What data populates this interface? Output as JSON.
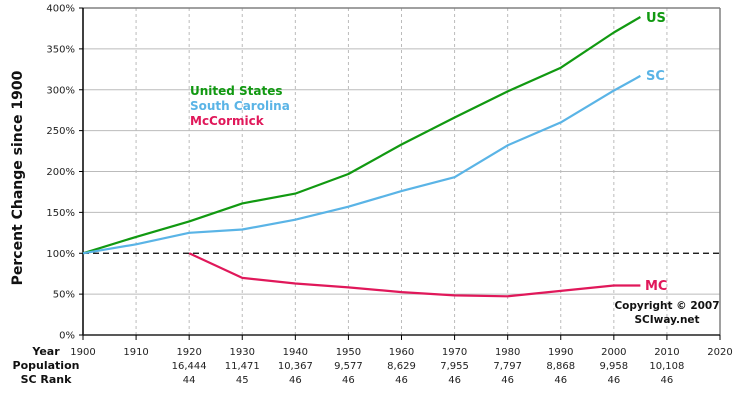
{
  "chart_data": {
    "type": "line",
    "title": "",
    "ylabel": "Percent Change since 1900",
    "xlabel": "Year",
    "ylim": [
      0,
      400
    ],
    "xlim": [
      1900,
      2020
    ],
    "yticks": [
      "0%",
      "50%",
      "100%",
      "150%",
      "200%",
      "250%",
      "300%",
      "350%",
      "400%"
    ],
    "ytick_values": [
      0,
      50,
      100,
      150,
      200,
      250,
      300,
      350,
      400
    ],
    "xticks": [
      1900,
      1910,
      1920,
      1930,
      1940,
      1950,
      1960,
      1970,
      1980,
      1990,
      2000,
      2010,
      2020
    ],
    "grid": true,
    "reference_line": {
      "y": 100,
      "style": "dashed"
    },
    "legend": {
      "position": "upper-left-inside",
      "entries": [
        {
          "label": "United States",
          "color": "#119911"
        },
        {
          "label": "South Carolina",
          "color": "#5ab4e6"
        },
        {
          "label": "McCormick",
          "color": "#e0185a"
        }
      ]
    },
    "series": [
      {
        "name": "United States",
        "end_label": "US",
        "color": "#119911",
        "x": [
          1900,
          1910,
          1920,
          1930,
          1940,
          1950,
          1960,
          1970,
          1980,
          1990,
          2000,
          2005
        ],
        "values": [
          100,
          120,
          139,
          161,
          173,
          197,
          233,
          266,
          298,
          327,
          370,
          389
        ]
      },
      {
        "name": "South Carolina",
        "end_label": "SC",
        "color": "#5ab4e6",
        "x": [
          1900,
          1910,
          1920,
          1930,
          1940,
          1950,
          1960,
          1970,
          1980,
          1990,
          2000,
          2005
        ],
        "values": [
          100,
          111,
          125,
          129,
          141,
          157,
          176,
          193,
          232,
          260,
          299,
          317
        ]
      },
      {
        "name": "McCormick",
        "end_label": "MC",
        "color": "#e0185a",
        "x": [
          1920,
          1930,
          1940,
          1950,
          1960,
          1970,
          1980,
          1990,
          2000,
          2005
        ],
        "values": [
          100,
          69.8,
          63.0,
          58.2,
          52.5,
          48.4,
          47.4,
          53.9,
          60.6,
          60.6
        ]
      }
    ],
    "table": {
      "row_labels": [
        "Year",
        "Population",
        "SC Rank"
      ],
      "columns": [
        {
          "year": "1900",
          "population": "",
          "rank": ""
        },
        {
          "year": "1910",
          "population": "",
          "rank": ""
        },
        {
          "year": "1920",
          "population": "16,444",
          "rank": "44"
        },
        {
          "year": "1930",
          "population": "11,471",
          "rank": "45"
        },
        {
          "year": "1940",
          "population": "10,367",
          "rank": "46"
        },
        {
          "year": "1950",
          "population": "9,577",
          "rank": "46"
        },
        {
          "year": "1960",
          "population": "8,629",
          "rank": "46"
        },
        {
          "year": "1970",
          "population": "7,955",
          "rank": "46"
        },
        {
          "year": "1980",
          "population": "7,797",
          "rank": "46"
        },
        {
          "year": "1990",
          "population": "8,868",
          "rank": "46"
        },
        {
          "year": "2000",
          "population": "9,958",
          "rank": "46"
        },
        {
          "year": "2010",
          "population": "10,108",
          "rank": "46"
        },
        {
          "year": "2020",
          "population": "",
          "rank": ""
        }
      ]
    },
    "annotations": [
      "Copyright © 2007",
      "SCIway.net"
    ]
  },
  "labels": {
    "ylabel": "Percent Change since 1900",
    "row_year": "Year",
    "row_population": "Population",
    "row_rank": "SC Rank",
    "legend_us": "United States",
    "legend_sc": "South Carolina",
    "legend_mc": "McCormick",
    "end_us": "US",
    "end_sc": "SC",
    "end_mc": "MC",
    "copyright_line1": "Copyright © 2007",
    "copyright_line2": "SCIway.net"
  },
  "colors": {
    "us": "#119911",
    "sc": "#5ab4e6",
    "mc": "#e0185a",
    "grid": "#bbbbbb",
    "frame": "#808080"
  }
}
